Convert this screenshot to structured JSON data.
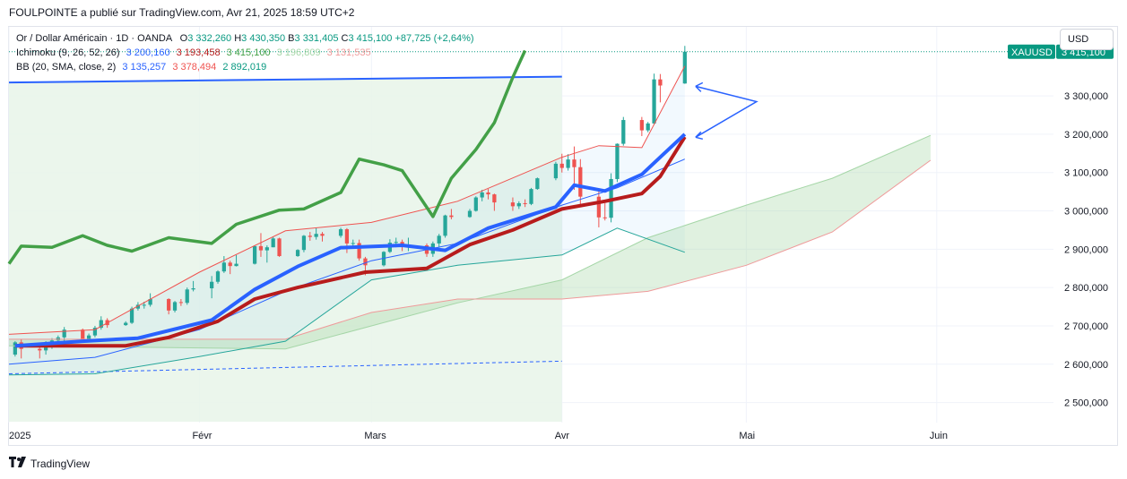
{
  "caption": "FOULPOINTE a publié sur TradingView.com, Avr 21, 2025 18:59 UTC+2",
  "legend": {
    "symbol": "Or / Dollar Américain · 1D · OANDA",
    "o_label": "O",
    "o_value": "3 332,260",
    "h_label": "H",
    "h_value": "3 430,350",
    "b_label": "B",
    "b_value": "3 331,405",
    "c_label": "C",
    "c_value": "3 415,100",
    "change": "+87,725 (+2,64%)",
    "ichimoku_label": "Ichimoku (9, 26, 52, 26)",
    "ichimoku_values": [
      "3 200,160",
      "3 193,458",
      "3 415,100",
      "3 196,809",
      "3 131,535"
    ],
    "bb_label": "BB (20, SMA, close, 2)",
    "bb_values": [
      "3 135,257",
      "3 378,494",
      "2 892,019"
    ]
  },
  "currency_button": "USD",
  "footer_brand": "TradingView",
  "colors": {
    "up": "#26a69a",
    "down": "#ef5350",
    "tenkan": "#2962ff",
    "kijun": "#b71c1c",
    "chikou": "#43a047",
    "span_a": "#a5d6a7",
    "span_b": "#ef9a9a",
    "bb_basis": "#2962ff",
    "bb_band": "#26a69a",
    "bb_band_upper": "#ef5350",
    "price_tag": "#089981"
  },
  "chart_data": {
    "type": "candlestick",
    "symbol": "XAUUSD",
    "last_price_label": "3 415,100",
    "ylim": [
      2450000,
      3480000
    ],
    "y_ticks": [
      "3 300,000",
      "3 200,000",
      "3 100,000",
      "3 000,000",
      "2 900,000",
      "2 800,000",
      "2 700,000",
      "2 600,000",
      "2 500,000"
    ],
    "y_tick_values": [
      3300,
      3200,
      3100,
      3000,
      2900,
      2800,
      2700,
      2600,
      2500
    ],
    "x_ticks": [
      "2025",
      "Févr",
      "Mars",
      "Avr",
      "Mai",
      "Juin"
    ],
    "x_tick_dates": [
      "2025-01-01",
      "2025-02-01",
      "2025-03-01",
      "2025-04-01",
      "2025-05-01",
      "2025-06-01"
    ],
    "candles": [
      {
        "d": "2025-01-02",
        "o": 2625,
        "c": 2657,
        "h": 2660,
        "l": 2620
      },
      {
        "d": "2025-01-03",
        "o": 2657,
        "c": 2640,
        "h": 2665,
        "l": 2615
      },
      {
        "d": "2025-01-06",
        "o": 2640,
        "c": 2636,
        "h": 2650,
        "l": 2615
      },
      {
        "d": "2025-01-07",
        "o": 2636,
        "c": 2650,
        "h": 2660,
        "l": 2625
      },
      {
        "d": "2025-01-08",
        "o": 2650,
        "c": 2662,
        "h": 2668,
        "l": 2640
      },
      {
        "d": "2025-01-09",
        "o": 2662,
        "c": 2670,
        "h": 2675,
        "l": 2658
      },
      {
        "d": "2025-01-10",
        "o": 2670,
        "c": 2690,
        "h": 2697,
        "l": 2660
      },
      {
        "d": "2025-01-13",
        "o": 2690,
        "c": 2663,
        "h": 2693,
        "l": 2658
      },
      {
        "d": "2025-01-14",
        "o": 2663,
        "c": 2675,
        "h": 2680,
        "l": 2660
      },
      {
        "d": "2025-01-15",
        "o": 2675,
        "c": 2695,
        "h": 2700,
        "l": 2670
      },
      {
        "d": "2025-01-16",
        "o": 2695,
        "c": 2715,
        "h": 2725,
        "l": 2690
      },
      {
        "d": "2025-01-17",
        "o": 2715,
        "c": 2702,
        "h": 2720,
        "l": 2695
      },
      {
        "d": "2025-01-20",
        "o": 2702,
        "c": 2708,
        "h": 2712,
        "l": 2700
      },
      {
        "d": "2025-01-21",
        "o": 2708,
        "c": 2745,
        "h": 2750,
        "l": 2705
      },
      {
        "d": "2025-01-22",
        "o": 2745,
        "c": 2755,
        "h": 2762,
        "l": 2740
      },
      {
        "d": "2025-01-23",
        "o": 2755,
        "c": 2755,
        "h": 2763,
        "l": 2745
      },
      {
        "d": "2025-01-24",
        "o": 2755,
        "c": 2770,
        "h": 2785,
        "l": 2750
      },
      {
        "d": "2025-01-27",
        "o": 2770,
        "c": 2740,
        "h": 2772,
        "l": 2730
      },
      {
        "d": "2025-01-28",
        "o": 2740,
        "c": 2762,
        "h": 2765,
        "l": 2735
      },
      {
        "d": "2025-01-29",
        "o": 2762,
        "c": 2760,
        "h": 2770,
        "l": 2752
      },
      {
        "d": "2025-01-30",
        "o": 2760,
        "c": 2795,
        "h": 2800,
        "l": 2755
      },
      {
        "d": "2025-01-31",
        "o": 2795,
        "c": 2798,
        "h": 2817,
        "l": 2790
      },
      {
        "d": "2025-02-03",
        "o": 2798,
        "c": 2815,
        "h": 2830,
        "l": 2772
      },
      {
        "d": "2025-02-04",
        "o": 2815,
        "c": 2842,
        "h": 2845,
        "l": 2810
      },
      {
        "d": "2025-02-05",
        "o": 2842,
        "c": 2865,
        "h": 2882,
        "l": 2838
      },
      {
        "d": "2025-02-06",
        "o": 2865,
        "c": 2856,
        "h": 2870,
        "l": 2835
      },
      {
        "d": "2025-02-07",
        "o": 2856,
        "c": 2862,
        "h": 2885,
        "l": 2855
      },
      {
        "d": "2025-02-10",
        "o": 2862,
        "c": 2908,
        "h": 2910,
        "l": 2860
      },
      {
        "d": "2025-02-11",
        "o": 2908,
        "c": 2897,
        "h": 2942,
        "l": 2880
      },
      {
        "d": "2025-02-12",
        "o": 2897,
        "c": 2905,
        "h": 2910,
        "l": 2865
      },
      {
        "d": "2025-02-13",
        "o": 2905,
        "c": 2928,
        "h": 2932,
        "l": 2905
      },
      {
        "d": "2025-02-14",
        "o": 2928,
        "c": 2882,
        "h": 2930,
        "l": 2880
      },
      {
        "d": "2025-02-17",
        "o": 2882,
        "c": 2898,
        "h": 2900,
        "l": 2880
      },
      {
        "d": "2025-02-18",
        "o": 2898,
        "c": 2935,
        "h": 2937,
        "l": 2892
      },
      {
        "d": "2025-02-19",
        "o": 2935,
        "c": 2932,
        "h": 2945,
        "l": 2922
      },
      {
        "d": "2025-02-20",
        "o": 2932,
        "c": 2940,
        "h": 2955,
        "l": 2925
      },
      {
        "d": "2025-02-21",
        "o": 2940,
        "c": 2935,
        "h": 2945,
        "l": 2920
      },
      {
        "d": "2025-02-24",
        "o": 2935,
        "c": 2952,
        "h": 2956,
        "l": 2930
      },
      {
        "d": "2025-02-25",
        "o": 2952,
        "c": 2915,
        "h": 2955,
        "l": 2890
      },
      {
        "d": "2025-02-26",
        "o": 2915,
        "c": 2916,
        "h": 2925,
        "l": 2905
      },
      {
        "d": "2025-02-27",
        "o": 2916,
        "c": 2876,
        "h": 2925,
        "l": 2870
      },
      {
        "d": "2025-02-28",
        "o": 2876,
        "c": 2858,
        "h": 2880,
        "l": 2832
      },
      {
        "d": "2025-03-03",
        "o": 2858,
        "c": 2893,
        "h": 2895,
        "l": 2855
      },
      {
        "d": "2025-03-04",
        "o": 2893,
        "c": 2917,
        "h": 2926,
        "l": 2890
      },
      {
        "d": "2025-03-05",
        "o": 2917,
        "c": 2919,
        "h": 2930,
        "l": 2905
      },
      {
        "d": "2025-03-06",
        "o": 2919,
        "c": 2910,
        "h": 2925,
        "l": 2895
      },
      {
        "d": "2025-03-07",
        "o": 2910,
        "c": 2910,
        "h": 2930,
        "l": 2895
      },
      {
        "d": "2025-03-10",
        "o": 2910,
        "c": 2888,
        "h": 2915,
        "l": 2880
      },
      {
        "d": "2025-03-11",
        "o": 2888,
        "c": 2915,
        "h": 2920,
        "l": 2880
      },
      {
        "d": "2025-03-12",
        "o": 2915,
        "c": 2935,
        "h": 2940,
        "l": 2905
      },
      {
        "d": "2025-03-13",
        "o": 2935,
        "c": 2988,
        "h": 2990,
        "l": 2930
      },
      {
        "d": "2025-03-14",
        "o": 2988,
        "c": 2984,
        "h": 3005,
        "l": 2978
      },
      {
        "d": "2025-03-17",
        "o": 2984,
        "c": 3000,
        "h": 3005,
        "l": 2982
      },
      {
        "d": "2025-03-18",
        "o": 3000,
        "c": 3035,
        "h": 3038,
        "l": 2998
      },
      {
        "d": "2025-03-19",
        "o": 3035,
        "c": 3048,
        "h": 3055,
        "l": 3025
      },
      {
        "d": "2025-03-20",
        "o": 3048,
        "c": 3043,
        "h": 3057,
        "l": 3030
      },
      {
        "d": "2025-03-21",
        "o": 3043,
        "c": 3022,
        "h": 3045,
        "l": 3000
      },
      {
        "d": "2025-03-24",
        "o": 3022,
        "c": 3012,
        "h": 3035,
        "l": 3000
      },
      {
        "d": "2025-03-25",
        "o": 3012,
        "c": 3020,
        "h": 3025,
        "l": 3005
      },
      {
        "d": "2025-03-26",
        "o": 3020,
        "c": 3018,
        "h": 3030,
        "l": 3010
      },
      {
        "d": "2025-03-27",
        "o": 3018,
        "c": 3057,
        "h": 3060,
        "l": 3015
      },
      {
        "d": "2025-03-28",
        "o": 3057,
        "c": 3085,
        "h": 3087,
        "l": 3055
      },
      {
        "d": "2025-03-31",
        "o": 3085,
        "c": 3123,
        "h": 3128,
        "l": 3080
      },
      {
        "d": "2025-04-01",
        "o": 3123,
        "c": 3112,
        "h": 3149,
        "l": 3100
      },
      {
        "d": "2025-04-02",
        "o": 3112,
        "c": 3134,
        "h": 3148,
        "l": 3105
      },
      {
        "d": "2025-04-03",
        "o": 3134,
        "c": 3114,
        "h": 3168,
        "l": 3055
      },
      {
        "d": "2025-04-04",
        "o": 3114,
        "c": 3037,
        "h": 3135,
        "l": 3015
      },
      {
        "d": "2025-04-07",
        "o": 3037,
        "c": 2983,
        "h": 3055,
        "l": 2957
      },
      {
        "d": "2025-04-08",
        "o": 2983,
        "c": 2982,
        "h": 3020,
        "l": 2975
      },
      {
        "d": "2025-04-09",
        "o": 2982,
        "c": 3083,
        "h": 3098,
        "l": 2970
      },
      {
        "d": "2025-04-10",
        "o": 3083,
        "c": 3175,
        "h": 3176,
        "l": 3075
      },
      {
        "d": "2025-04-11",
        "o": 3175,
        "c": 3237,
        "h": 3245,
        "l": 3170
      },
      {
        "d": "2025-04-14",
        "o": 3237,
        "c": 3210,
        "h": 3245,
        "l": 3195
      },
      {
        "d": "2025-04-15",
        "o": 3210,
        "c": 3228,
        "h": 3232,
        "l": 3205
      },
      {
        "d": "2025-04-16",
        "o": 3228,
        "c": 3343,
        "h": 3358,
        "l": 3225
      },
      {
        "d": "2025-04-17",
        "o": 3343,
        "c": 3327,
        "h": 3357,
        "l": 3283
      },
      {
        "d": "2025-04-21",
        "o": 3332.26,
        "c": 3415.1,
        "h": 3430.35,
        "l": 3331.405
      }
    ],
    "series": [
      {
        "name": "Tenkan",
        "values": [
          [
            "2025-01-02",
            2648
          ],
          [
            "2025-01-13",
            2660
          ],
          [
            "2025-01-22",
            2668
          ],
          [
            "2025-02-03",
            2715
          ],
          [
            "2025-02-10",
            2795
          ],
          [
            "2025-02-17",
            2855
          ],
          [
            "2025-02-24",
            2904
          ],
          [
            "2025-03-06",
            2910
          ],
          [
            "2025-03-13",
            2897
          ],
          [
            "2025-03-20",
            2955
          ],
          [
            "2025-03-31",
            3010
          ],
          [
            "2025-04-03",
            3067
          ],
          [
            "2025-04-08",
            3052
          ],
          [
            "2025-04-14",
            3095
          ],
          [
            "2025-04-17",
            3140
          ],
          [
            "2025-04-21",
            3200
          ]
        ]
      },
      {
        "name": "Kijun",
        "values": [
          [
            "2025-01-02",
            2648
          ],
          [
            "2025-01-20",
            2648
          ],
          [
            "2025-01-27",
            2670
          ],
          [
            "2025-02-04",
            2712
          ],
          [
            "2025-02-10",
            2770
          ],
          [
            "2025-02-17",
            2800
          ],
          [
            "2025-02-28",
            2840
          ],
          [
            "2025-03-10",
            2850
          ],
          [
            "2025-03-17",
            2912
          ],
          [
            "2025-03-24",
            2950
          ],
          [
            "2025-04-01",
            3005
          ],
          [
            "2025-04-08",
            3025
          ],
          [
            "2025-04-14",
            3045
          ],
          [
            "2025-04-17",
            3090
          ],
          [
            "2025-04-21",
            3193
          ]
        ]
      },
      {
        "name": "Chikou",
        "values": [
          [
            "2025-01-01",
            2862
          ],
          [
            "2025-01-03",
            2908
          ],
          [
            "2025-01-08",
            2905
          ],
          [
            "2025-01-13",
            2935
          ],
          [
            "2025-01-17",
            2910
          ],
          [
            "2025-01-21",
            2895
          ],
          [
            "2025-01-27",
            2930
          ],
          [
            "2025-02-03",
            2915
          ],
          [
            "2025-02-07",
            2965
          ],
          [
            "2025-02-14",
            3002
          ],
          [
            "2025-02-18",
            3005
          ],
          [
            "2025-02-24",
            3048
          ],
          [
            "2025-02-27",
            3135
          ],
          [
            "2025-03-03",
            3120
          ],
          [
            "2025-03-06",
            3105
          ],
          [
            "2025-03-11",
            2985
          ],
          [
            "2025-03-14",
            3085
          ],
          [
            "2025-03-18",
            3160
          ],
          [
            "2025-03-21",
            3230
          ],
          [
            "2025-03-24",
            3348
          ],
          [
            "2025-03-26",
            3418
          ]
        ]
      },
      {
        "name": "BB basis",
        "values": [
          [
            "2025-01-01",
            2600
          ],
          [
            "2025-01-15",
            2618
          ],
          [
            "2025-02-01",
            2690
          ],
          [
            "2025-02-15",
            2790
          ],
          [
            "2025-03-01",
            2870
          ],
          [
            "2025-03-15",
            2915
          ],
          [
            "2025-04-01",
            3015
          ],
          [
            "2025-04-10",
            3060
          ],
          [
            "2025-04-21",
            3135
          ]
        ]
      },
      {
        "name": "BB upper",
        "values": [
          [
            "2025-01-01",
            2678
          ],
          [
            "2025-01-15",
            2690
          ],
          [
            "2025-02-01",
            2840
          ],
          [
            "2025-02-15",
            2948
          ],
          [
            "2025-03-01",
            2970
          ],
          [
            "2025-03-15",
            3025
          ],
          [
            "2025-04-01",
            3140
          ],
          [
            "2025-04-07",
            3170
          ],
          [
            "2025-04-14",
            3165
          ],
          [
            "2025-04-21",
            3378
          ]
        ]
      },
      {
        "name": "BB lower",
        "values": [
          [
            "2025-01-01",
            2572
          ],
          [
            "2025-01-15",
            2575
          ],
          [
            "2025-02-01",
            2620
          ],
          [
            "2025-02-15",
            2660
          ],
          [
            "2025-03-01",
            2820
          ],
          [
            "2025-03-15",
            2858
          ],
          [
            "2025-04-01",
            2885
          ],
          [
            "2025-04-10",
            2955
          ],
          [
            "2025-04-21",
            2892
          ]
        ]
      },
      {
        "name": "Span A",
        "values": [
          [
            "2025-01-01",
            2648
          ],
          [
            "2025-02-15",
            2640
          ],
          [
            "2025-03-01",
            2700
          ],
          [
            "2025-03-15",
            2760
          ],
          [
            "2025-04-01",
            2820
          ],
          [
            "2025-04-15",
            2930
          ],
          [
            "2025-05-01",
            3015
          ],
          [
            "2025-05-15",
            3085
          ],
          [
            "2025-05-31",
            3197
          ]
        ]
      },
      {
        "name": "Span B",
        "values": [
          [
            "2025-01-01",
            2665
          ],
          [
            "2025-02-15",
            2665
          ],
          [
            "2025-03-01",
            2735
          ],
          [
            "2025-03-15",
            2770
          ],
          [
            "2025-04-01",
            2770
          ],
          [
            "2025-04-15",
            2790
          ],
          [
            "2025-05-01",
            2858
          ],
          [
            "2025-05-15",
            2945
          ],
          [
            "2025-05-31",
            3132
          ]
        ]
      }
    ],
    "drawings": {
      "resistance_line": {
        "from": [
          "2025-01-01",
          3335
        ],
        "to": [
          "2025-04-01",
          3350
        ]
      },
      "support_line": {
        "from": [
          "2025-01-01",
          2575
        ],
        "to": [
          "2025-04-01",
          2608
        ]
      }
    },
    "grid": true
  }
}
